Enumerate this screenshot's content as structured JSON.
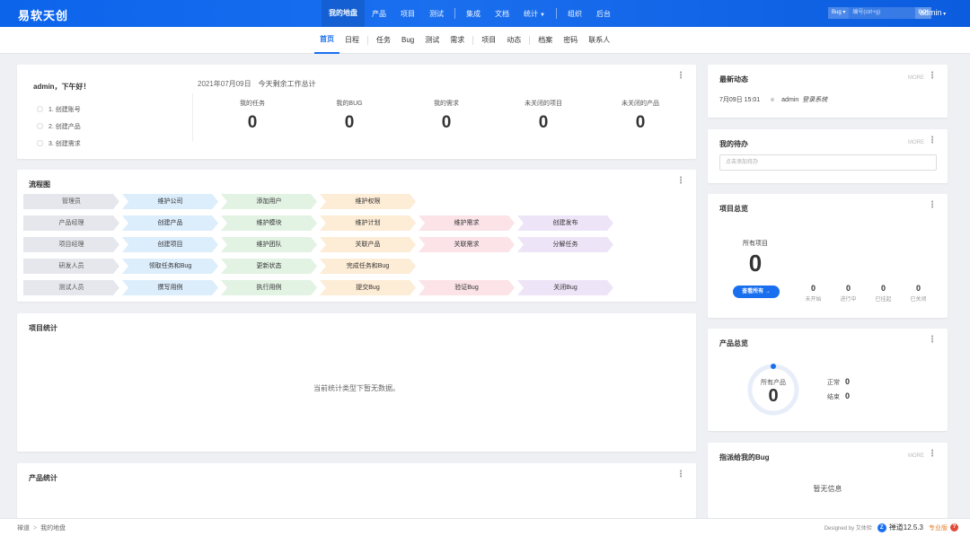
{
  "brand": "易软天创",
  "main_nav": {
    "items": [
      "我的地盘",
      "产品",
      "项目",
      "测试"
    ],
    "items2": [
      "集成",
      "文档",
      "统计"
    ],
    "items3": [
      "组织",
      "后台"
    ],
    "search_type": "Bug",
    "search_placeholder": "编号(ctrl+g)",
    "search_go": "GO!",
    "user": "admin"
  },
  "sub_nav": {
    "group1": [
      "首页",
      "日程",
      "任务",
      "Bug",
      "测试",
      "需求",
      "项目",
      "动态"
    ],
    "group2": [
      "档案",
      "密码",
      "联系人"
    ]
  },
  "welcome": {
    "greeting": "admin，下午好！",
    "steps": [
      "1. 创建账号",
      "2. 创建产品",
      "3. 创建需求"
    ],
    "date": "2021年07月09日",
    "today_text": "今天剩余工作总计",
    "stats": [
      {
        "label": "我的任务",
        "value": "0"
      },
      {
        "label": "我的BUG",
        "value": "0"
      },
      {
        "label": "我的需求",
        "value": "0"
      },
      {
        "label": "未关闭的项目",
        "value": "0"
      },
      {
        "label": "未关闭的产品",
        "value": "0"
      }
    ]
  },
  "flow": {
    "title": "流程图",
    "rows": [
      [
        "管理员",
        "维护公司",
        "添加用户",
        "维护权限"
      ],
      [
        "产品经理",
        "创建产品",
        "维护模块",
        "维护计划",
        "维护需求",
        "创建发布"
      ],
      [
        "项目经理",
        "创建项目",
        "维护团队",
        "关联产品",
        "关联需求",
        "分解任务"
      ],
      [
        "研发人员",
        "领取任务和Bug",
        "更新状态",
        "完成任务和Bug"
      ],
      [
        "测试人员",
        "撰写用例",
        "执行用例",
        "提交Bug",
        "验证Bug",
        "关闭Bug"
      ]
    ]
  },
  "project_stats": {
    "title": "项目统计",
    "empty": "当前统计类型下暂无数据。"
  },
  "product_stats": {
    "title": "产品统计"
  },
  "dynamics": {
    "title": "最新动态",
    "more": "MORE",
    "entry": {
      "time": "7月09日 15:01",
      "user": "admin",
      "action": "登录系统"
    }
  },
  "todo": {
    "title": "我的待办",
    "more": "MORE",
    "placeholder": "点击添加待办"
  },
  "project_overview": {
    "title": "项目总览",
    "all_label": "所有项目",
    "all_value": "0",
    "view_all": "查看所有 →",
    "stats": [
      {
        "label": "未开始",
        "value": "0"
      },
      {
        "label": "进行中",
        "value": "0"
      },
      {
        "label": "已挂起",
        "value": "0"
      },
      {
        "label": "已关闭",
        "value": "0"
      }
    ]
  },
  "product_overview": {
    "title": "产品总览",
    "all_label": "所有产品",
    "all_value": "0",
    "normal_label": "正常",
    "normal_value": "0",
    "closed_label": "结束",
    "closed_value": "0"
  },
  "assigned_bugs": {
    "title": "指派给我的Bug",
    "more": "MORE",
    "empty": "暂无信息"
  },
  "footer": {
    "crumbs": [
      "禅道",
      "我的地盘"
    ],
    "designed": "Designed by 艾体验",
    "version": "禅道12.5.3",
    "edition": "专业版"
  },
  "colors": {
    "primary": "#1a6fef",
    "nav_bg": "#0c64eb"
  }
}
